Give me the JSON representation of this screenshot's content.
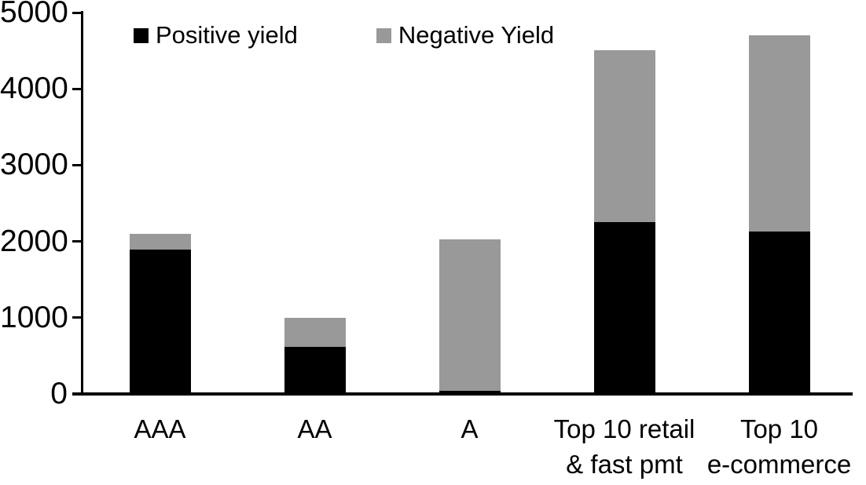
{
  "chart_data": {
    "type": "bar",
    "stacked": true,
    "title": "",
    "xlabel": "",
    "ylabel": "",
    "categories": [
      "AAA",
      "AA",
      "A",
      "Top 10 retail\n& fast pmt",
      "Top 10\ne-commerce"
    ],
    "series": [
      {
        "name": "Positive yield",
        "color": "#000000",
        "values": [
          1890,
          620,
          45,
          2250,
          2130
        ]
      },
      {
        "name": "Negative Yield",
        "color": "#999999",
        "values": [
          210,
          380,
          1985,
          2260,
          2570
        ]
      }
    ],
    "totals": [
      2100,
      1000,
      2030,
      4510,
      4700
    ],
    "ylim": [
      0,
      5000
    ],
    "yticks": [
      0,
      1000,
      2000,
      3000,
      4000,
      5000
    ],
    "grid": false,
    "legend_position": "top-left-inside",
    "axis_color": "#000000",
    "background_color": "#ffffff"
  }
}
